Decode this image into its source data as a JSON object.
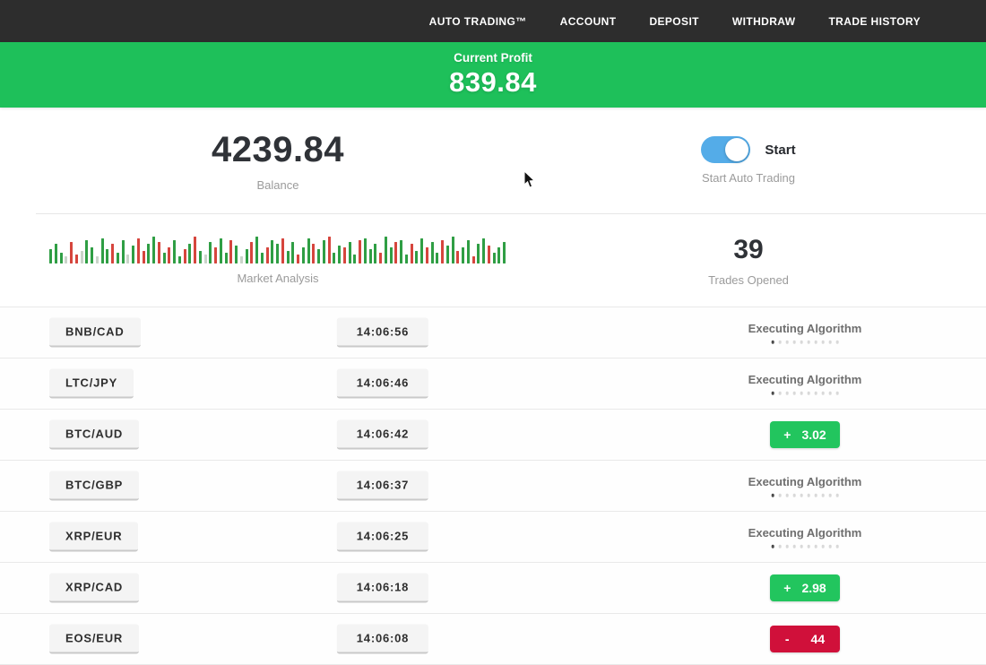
{
  "navbar": {
    "items": [
      "AUTO TRADING™",
      "ACCOUNT",
      "DEPOSIT",
      "WITHDRAW",
      "TRADE HISTORY"
    ]
  },
  "profit_banner": {
    "label": "Current Profit",
    "value": "839.84"
  },
  "stats": {
    "balance": {
      "value": "4239.84",
      "label": "Balance"
    },
    "auto_trading": {
      "toggle_on": true,
      "toggle_label": "Start",
      "label": "Start Auto Trading"
    },
    "market": {
      "label": "Market Analysis"
    },
    "trades": {
      "value": "39",
      "label": "Trades Opened"
    }
  },
  "chart_data": {
    "type": "bar",
    "title": "Market Analysis",
    "note": "decorative mini bar strip, green=up red=down, heights in px, color g|r|p",
    "bars": [
      [
        16,
        "g"
      ],
      [
        22,
        "g"
      ],
      [
        12,
        "g"
      ],
      [
        8,
        "p"
      ],
      [
        24,
        "r"
      ],
      [
        10,
        "r"
      ],
      [
        14,
        "p"
      ],
      [
        26,
        "g"
      ],
      [
        18,
        "g"
      ],
      [
        8,
        "p"
      ],
      [
        28,
        "g"
      ],
      [
        16,
        "g"
      ],
      [
        22,
        "r"
      ],
      [
        12,
        "g"
      ],
      [
        26,
        "g"
      ],
      [
        10,
        "p"
      ],
      [
        20,
        "g"
      ],
      [
        28,
        "r"
      ],
      [
        14,
        "r"
      ],
      [
        22,
        "g"
      ],
      [
        30,
        "g"
      ],
      [
        24,
        "r"
      ],
      [
        12,
        "g"
      ],
      [
        18,
        "r"
      ],
      [
        26,
        "g"
      ],
      [
        8,
        "g"
      ],
      [
        16,
        "r"
      ],
      [
        22,
        "g"
      ],
      [
        30,
        "r"
      ],
      [
        14,
        "g"
      ],
      [
        10,
        "p"
      ],
      [
        24,
        "g"
      ],
      [
        18,
        "r"
      ],
      [
        28,
        "g"
      ],
      [
        12,
        "g"
      ],
      [
        26,
        "r"
      ],
      [
        20,
        "g"
      ],
      [
        8,
        "p"
      ],
      [
        16,
        "g"
      ],
      [
        24,
        "r"
      ],
      [
        30,
        "g"
      ],
      [
        12,
        "g"
      ],
      [
        18,
        "r"
      ],
      [
        26,
        "g"
      ],
      [
        22,
        "g"
      ],
      [
        28,
        "r"
      ],
      [
        14,
        "g"
      ],
      [
        24,
        "g"
      ],
      [
        10,
        "r"
      ],
      [
        18,
        "g"
      ],
      [
        28,
        "g"
      ],
      [
        22,
        "r"
      ],
      [
        16,
        "g"
      ],
      [
        26,
        "g"
      ],
      [
        30,
        "r"
      ],
      [
        12,
        "g"
      ],
      [
        20,
        "g"
      ],
      [
        18,
        "r"
      ],
      [
        24,
        "g"
      ],
      [
        10,
        "g"
      ],
      [
        26,
        "r"
      ],
      [
        28,
        "g"
      ],
      [
        16,
        "g"
      ],
      [
        22,
        "g"
      ],
      [
        12,
        "r"
      ],
      [
        30,
        "g"
      ],
      [
        18,
        "g"
      ],
      [
        24,
        "r"
      ],
      [
        26,
        "g"
      ],
      [
        10,
        "g"
      ],
      [
        22,
        "r"
      ],
      [
        14,
        "g"
      ],
      [
        28,
        "g"
      ],
      [
        18,
        "r"
      ],
      [
        24,
        "g"
      ],
      [
        12,
        "g"
      ],
      [
        26,
        "r"
      ],
      [
        20,
        "g"
      ],
      [
        30,
        "g"
      ],
      [
        14,
        "r"
      ],
      [
        18,
        "g"
      ],
      [
        26,
        "g"
      ],
      [
        8,
        "r"
      ],
      [
        22,
        "g"
      ],
      [
        28,
        "g"
      ],
      [
        20,
        "r"
      ],
      [
        12,
        "g"
      ],
      [
        18,
        "g"
      ],
      [
        24,
        "g"
      ]
    ]
  },
  "trades_table": {
    "executing_label": "Executing Algorithm",
    "executing_dots": 10,
    "rows": [
      {
        "pair": "BNB/CAD",
        "time": "14:06:56",
        "status": "executing"
      },
      {
        "pair": "LTC/JPY",
        "time": "14:06:46",
        "status": "executing"
      },
      {
        "pair": "BTC/AUD",
        "time": "14:06:42",
        "status": "result",
        "sign": "+",
        "value": "3.02"
      },
      {
        "pair": "BTC/GBP",
        "time": "14:06:37",
        "status": "executing"
      },
      {
        "pair": "XRP/EUR",
        "time": "14:06:25",
        "status": "executing"
      },
      {
        "pair": "XRP/CAD",
        "time": "14:06:18",
        "status": "result",
        "sign": "+",
        "value": "2.98"
      },
      {
        "pair": "EOS/EUR",
        "time": "14:06:08",
        "status": "result",
        "sign": "-",
        "value": "44"
      }
    ]
  },
  "colors": {
    "banner_green": "#1ec05a",
    "badge_green": "#22c55e",
    "badge_red": "#d0103a",
    "toggle_blue": "#54ace8",
    "navbar_bg": "#2d2d2d"
  }
}
